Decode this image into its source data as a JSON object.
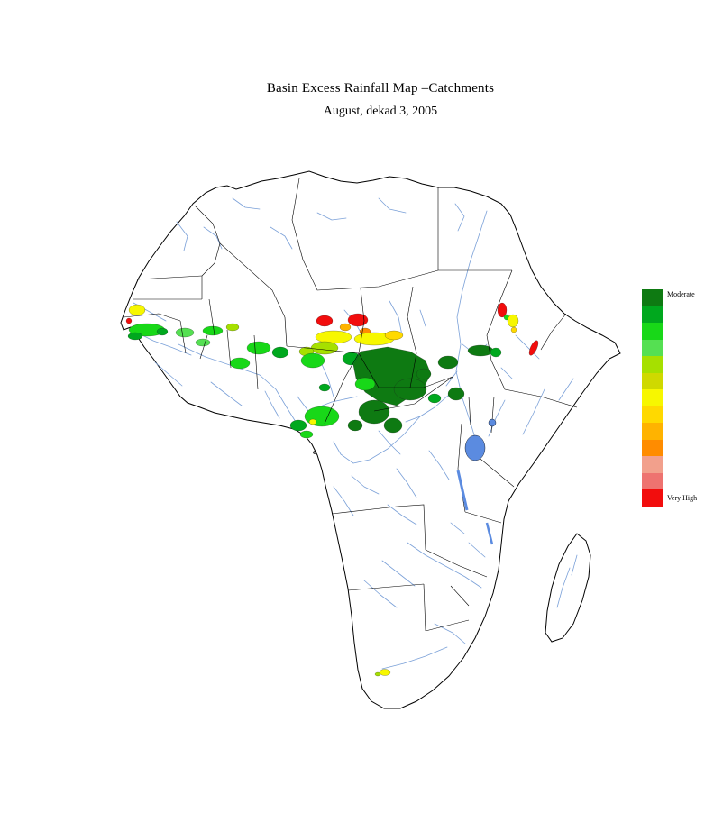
{
  "title": "Basin Excess Rainfall Map –Catchments",
  "subtitle": "August, dekad 3, 2005",
  "legend": {
    "top_label": "Moderate",
    "bottom_label": "Very High",
    "colors": [
      "#0e7a12",
      "#00a81e",
      "#18d818",
      "#55e052",
      "#a6e000",
      "#cfd900",
      "#f7f700",
      "#ffd900",
      "#ffb300",
      "#ff8c00",
      "#f2a08c",
      "#ee7370",
      "#f20d0d"
    ]
  },
  "map": {
    "ocean_color": "#ffffff",
    "border_color": "#000000",
    "river_color": "#7aa0d8",
    "lake_color": "#5b8be0"
  }
}
